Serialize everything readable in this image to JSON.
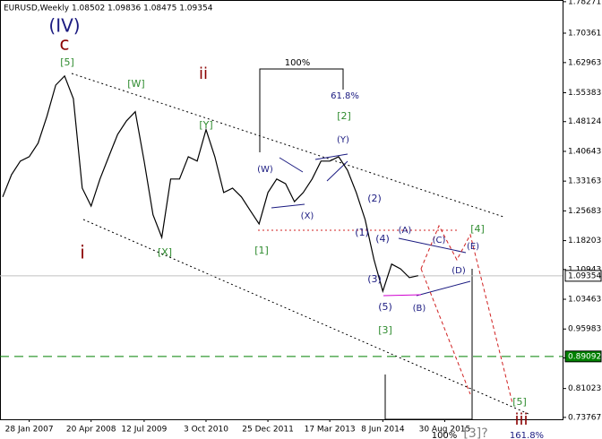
{
  "chart_data": {
    "type": "line",
    "title": "EURUSD,Weekly  1.08502 1.09836 1.08475 1.09354",
    "categories": [
      null,
      null,
      null,
      "28 Jan 2007",
      null,
      null,
      null,
      null,
      null,
      null,
      "20 Apr 2008",
      null,
      null,
      null,
      null,
      null,
      "12 Jul 2009",
      null,
      null,
      null,
      null,
      null,
      null,
      "3 Oct 2010",
      null,
      null,
      null,
      null,
      null,
      null,
      "25 Dec 2011",
      null,
      null,
      null,
      null,
      null,
      null,
      "17 Mar 2013",
      null,
      null,
      null,
      null,
      null,
      "8 Jun 2014",
      null,
      null,
      null,
      null,
      null,
      null,
      "30 Aug 2015",
      null,
      null,
      null,
      null,
      null,
      null,
      null,
      null,
      null,
      null,
      null,
      null,
      null
    ],
    "series": [
      {
        "name": "EURUSD",
        "color": "#000000",
        "values": [
          1.292,
          1.348,
          1.382,
          1.393,
          1.427,
          1.494,
          1.573,
          1.596,
          1.539,
          1.314,
          1.269,
          1.337,
          1.393,
          1.449,
          1.483,
          1.506,
          1.382,
          1.247,
          1.19,
          1.337,
          1.337,
          1.393,
          1.382,
          1.461,
          1.393,
          1.303,
          1.314,
          1.292,
          1.258,
          1.224,
          1.303,
          1.337,
          1.325,
          1.28,
          1.303,
          1.337,
          1.382,
          1.382,
          1.393,
          1.359,
          1.303,
          1.235,
          1.134,
          1.055,
          1.123,
          1.111,
          1.089,
          1.094,
          null,
          null,
          null,
          null,
          null,
          null,
          null,
          null,
          null,
          null,
          null,
          null,
          null,
          null,
          null,
          null
        ]
      }
    ],
    "ylim": [
      0.73289,
      1.78694
    ],
    "yticks": [
      1.78271,
      1.70361,
      1.62963,
      1.55383,
      1.48124,
      1.40643,
      1.33163,
      1.25683,
      1.18203,
      1.10943,
      1.03463,
      0.95983,
      0.88723,
      0.81023,
      0.73767
    ],
    "hlines": [
      {
        "value": 1.09354,
        "color": "#c0c0c0",
        "label_fill": "#ffffff",
        "label_color": "#000000"
      },
      {
        "value": 0.89092,
        "color": "#008000",
        "label_fill": "#008000",
        "label_color": "#ffffff"
      }
    ],
    "annotations": [
      {
        "text": "(IV)",
        "color": "#1a1a80"
      },
      {
        "text": "c",
        "color": "#8b0000"
      },
      {
        "text": "[5]",
        "color": "#2e8b2e"
      },
      {
        "text": "[W]",
        "color": "#2e8b2e"
      },
      {
        "text": "ii",
        "color": "#8b0000"
      },
      {
        "text": "[Y]",
        "color": "#2e8b2e"
      },
      {
        "text": "100%",
        "color": "#000000"
      },
      {
        "text": "61.8%",
        "color": "#1a1a80"
      },
      {
        "text": "[2]",
        "color": "#2e8b2e"
      },
      {
        "text": "(Y)",
        "color": "#1a1a80"
      },
      {
        "text": "(W)",
        "color": "#1a1a80"
      },
      {
        "text": "(X)",
        "color": "#1a1a80"
      },
      {
        "text": "(2)",
        "color": "#1a1a80"
      },
      {
        "text": "[4]",
        "color": "#2e8b2e"
      },
      {
        "text": "(1)",
        "color": "#1a1a80"
      },
      {
        "text": "(4)",
        "color": "#1a1a80"
      },
      {
        "text": "(A)",
        "color": "#1a1a80"
      },
      {
        "text": "(C)",
        "color": "#1a1a80"
      },
      {
        "text": "(E)",
        "color": "#1a1a80"
      },
      {
        "text": "(3)",
        "color": "#1a1a80"
      },
      {
        "text": "(D)",
        "color": "#1a1a80"
      },
      {
        "text": "(5)",
        "color": "#1a1a80"
      },
      {
        "text": "(B)",
        "color": "#1a1a80"
      },
      {
        "text": "[3]",
        "color": "#2e8b2e"
      },
      {
        "text": "i",
        "color": "#8b0000"
      },
      {
        "text": "[X]",
        "color": "#2e8b2e"
      },
      {
        "text": "[1]",
        "color": "#2e8b2e"
      },
      {
        "text": "[5]",
        "color": "#2e8b2e"
      },
      {
        "text": "iii",
        "color": "#8b0000"
      },
      {
        "text": "100%",
        "color": "#000000"
      },
      {
        "text": "[3]?",
        "color": "#808080"
      },
      {
        "text": "161.8%",
        "color": "#1a1a80"
      }
    ]
  }
}
